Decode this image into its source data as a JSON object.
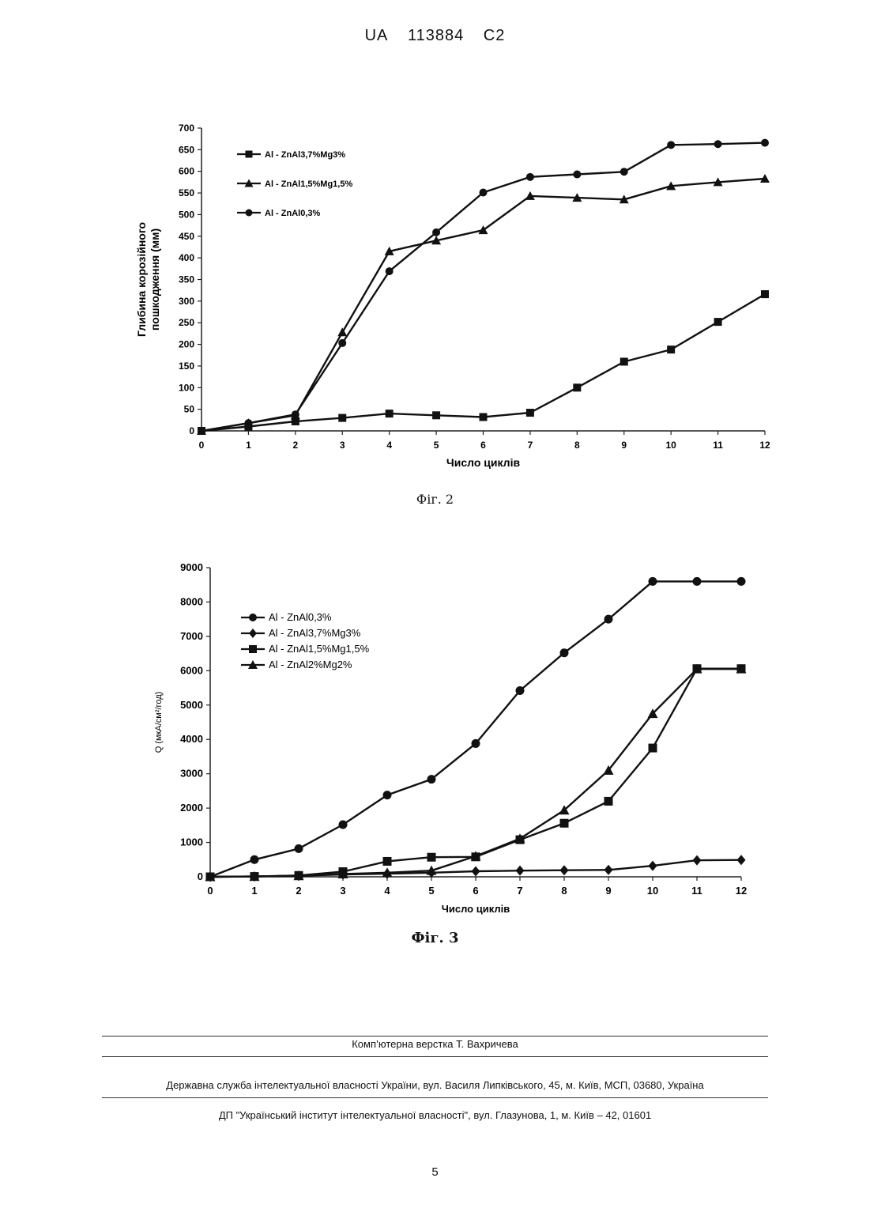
{
  "header": {
    "country": "UA",
    "number": "113884",
    "kind": "C2"
  },
  "figures": [
    {
      "caption": "Фіг. 2",
      "chart_data": {
        "type": "line",
        "xlabel": "Число циклів",
        "ylabel_lines": [
          "Глибина корозійного",
          "пошкодження (мм)"
        ],
        "x": [
          0,
          1,
          2,
          3,
          4,
          5,
          6,
          7,
          8,
          9,
          10,
          11,
          12
        ],
        "xticks": [
          "0",
          "1",
          "2",
          "3",
          "4",
          "5",
          "6",
          "7",
          "8",
          "9",
          "10",
          "11",
          "12"
        ],
        "ylim": [
          0,
          700
        ],
        "yticks": [
          "0",
          "50",
          "100",
          "150",
          "200",
          "250",
          "300",
          "350",
          "400",
          "450",
          "500",
          "550",
          "600",
          "650",
          "700"
        ],
        "legend_position": "top-left",
        "series": [
          {
            "name": "Al - ZnAl3,7%Mg3%",
            "marker": "square",
            "values": [
              0,
              10,
              22,
              30,
              40,
              36,
              32,
              42,
              100,
              160,
              188,
              252,
              316
            ]
          },
          {
            "name": "Al - ZnAl1,5%Mg1,5%",
            "marker": "triangle",
            "values": [
              0,
              18,
              36,
              228,
              415,
              440,
              464,
              543,
              539,
              535,
              566,
              575,
              583
            ]
          },
          {
            "name": "Al - ZnAl0,3%",
            "marker": "circle",
            "values": [
              0,
              18,
              38,
              203,
              369,
              459,
              551,
              587,
              593,
              599,
              661,
              663,
              666
            ]
          }
        ]
      }
    },
    {
      "caption": "Фіг. 3",
      "chart_data": {
        "type": "line",
        "xlabel": "Число циклів",
        "ylabel": "Q (мкА/см²/год)",
        "x": [
          0,
          1,
          2,
          3,
          4,
          5,
          6,
          7,
          8,
          9,
          10,
          11,
          12
        ],
        "xticks": [
          "0",
          "1",
          "2",
          "3",
          "4",
          "5",
          "6",
          "7",
          "8",
          "9",
          "10",
          "11",
          "12"
        ],
        "ylim": [
          0,
          9000
        ],
        "yticks": [
          "0",
          "1000",
          "2000",
          "3000",
          "4000",
          "5000",
          "6000",
          "7000",
          "8000",
          "9000"
        ],
        "legend_position": "top-left",
        "series": [
          {
            "name": "Al - ZnAl0,3%",
            "marker": "circle",
            "values": [
              0,
              500,
              820,
              1520,
              2380,
              2840,
              3880,
              5420,
              6520,
              7500,
              8600,
              8600,
              8600
            ]
          },
          {
            "name": "Al - ZnAl3,7%Mg3%",
            "marker": "diamond",
            "values": [
              0,
              10,
              30,
              70,
              90,
              120,
              160,
              180,
              190,
              200,
              320,
              480,
              490
            ]
          },
          {
            "name": "Al - ZnAl1,5%Mg1,5%",
            "marker": "square",
            "values": [
              0,
              10,
              40,
              150,
              450,
              570,
              580,
              1080,
              1560,
              2200,
              3750,
              6060,
              6060
            ]
          },
          {
            "name": "Al - ZnAl2%Mg2%",
            "marker": "triangle",
            "values": [
              0,
              10,
              30,
              80,
              120,
              180,
              600,
              1110,
              1940,
              3100,
              4750,
              6050,
              6050
            ]
          }
        ]
      }
    }
  ],
  "footer": {
    "layout_credit": "Комп’ютерна верстка Т. Вахричева",
    "office": "Державна служба інтелектуальної власності України, вул. Василя Липківського, 45, м. Київ, МСП, 03680, Україна",
    "institute": "ДП \"Український інститут інтелектуальної власності\", вул. Глазунова, 1, м. Київ – 42, 01601"
  },
  "page_number": "5"
}
